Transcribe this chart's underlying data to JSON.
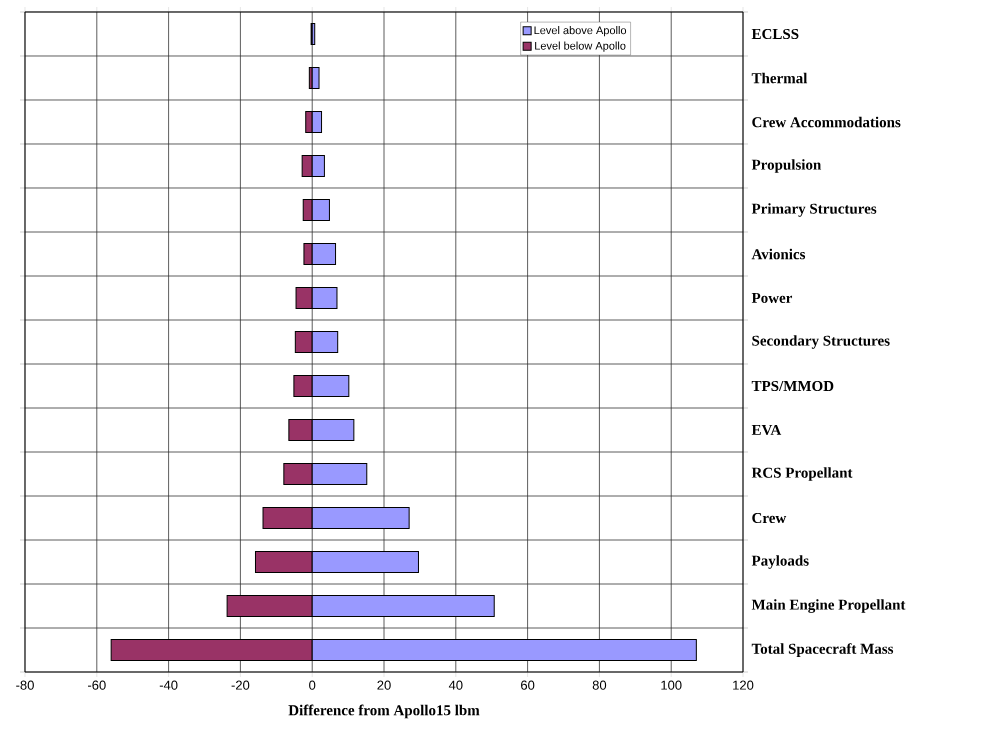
{
  "chart_data": {
    "type": "bar",
    "orientation": "horizontal",
    "xlabel": "Difference from Apollo15 lbm",
    "categories": [
      "ECLSS",
      "Thermal",
      "Crew Accommodations",
      "Propulsion",
      "Primary Structures",
      "Avionics",
      "Power",
      "Secondary Structures",
      "TPS/MMOD",
      "EVA",
      "RCS Propellant",
      "Crew",
      "Payloads",
      "Main Engine Propellant",
      "Total Spacecraft Mass"
    ],
    "series": [
      {
        "name": "Level above Apollo",
        "color": "#9999ff",
        "values": [
          0.7,
          1.9,
          2.6,
          3.4,
          4.8,
          6.5,
          6.9,
          7.1,
          10.2,
          11.6,
          15.2,
          27,
          29.6,
          50.7,
          107
        ]
      },
      {
        "name": "Level below Apollo",
        "color": "#993366",
        "values": [
          -0.3,
          -0.8,
          -1.8,
          -2.8,
          -2.5,
          -2.3,
          -4.5,
          -4.7,
          -5.1,
          -6.5,
          -7.9,
          -13.7,
          -15.8,
          -23.7,
          -56
        ]
      }
    ],
    "xlim": [
      -80,
      120
    ],
    "xticks": [
      -80,
      -60,
      -40,
      -20,
      0,
      20,
      40,
      60,
      80,
      100,
      120
    ],
    "stacked": true,
    "grid": true,
    "legend": "top right"
  }
}
